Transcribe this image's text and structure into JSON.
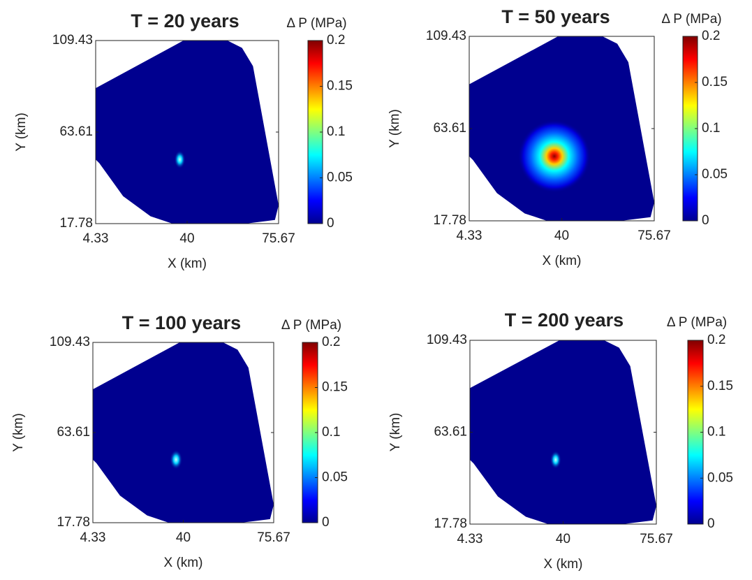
{
  "chart_data": [
    {
      "type": "heatmap",
      "title": "T = 20 years",
      "colorbar_label": "Δ P (MPa)",
      "xlabel": "X (km)",
      "ylabel": "Y (km)",
      "xlim": [
        4.33,
        75.67
      ],
      "xticks": [
        4.33,
        40,
        75.67
      ],
      "ylim": [
        17.78,
        109.43
      ],
      "yticks": [
        17.78,
        63.61,
        109.43
      ],
      "clim": [
        0,
        0.2
      ],
      "cticks": [
        0,
        0.05,
        0.1,
        0.15,
        0.2
      ],
      "colormap": "jet"
    },
    {
      "type": "heatmap",
      "title": "T = 50 years",
      "colorbar_label": "Δ P (MPa)",
      "xlabel": "X (km)",
      "ylabel": "Y (km)",
      "xlim": [
        4.33,
        75.67
      ],
      "xticks": [
        4.33,
        40,
        75.67
      ],
      "ylim": [
        17.78,
        109.43
      ],
      "yticks": [
        17.78,
        63.61,
        109.43
      ],
      "clim": [
        0,
        0.2
      ],
      "cticks": [
        0,
        0.05,
        0.1,
        0.15,
        0.2
      ],
      "colormap": "jet"
    },
    {
      "type": "heatmap",
      "title": "T = 100 years",
      "colorbar_label": "Δ P (MPa)",
      "xlabel": "X (km)",
      "ylabel": "Y (km)",
      "xlim": [
        4.33,
        75.67
      ],
      "xticks": [
        4.33,
        40,
        75.67
      ],
      "ylim": [
        17.78,
        109.43
      ],
      "yticks": [
        17.78,
        63.61,
        109.43
      ],
      "clim": [
        0,
        0.2
      ],
      "cticks": [
        0,
        0.05,
        0.1,
        0.15,
        0.2
      ],
      "colormap": "jet"
    },
    {
      "type": "heatmap",
      "title": "T = 200 years",
      "colorbar_label": "Δ P (MPa)",
      "xlabel": "X (km)",
      "ylabel": "Y (km)",
      "xlim": [
        4.33,
        75.67
      ],
      "xticks": [
        4.33,
        40,
        75.67
      ],
      "ylim": [
        17.78,
        109.43
      ],
      "yticks": [
        17.78,
        63.61,
        109.43
      ],
      "clim": [
        0,
        0.2
      ],
      "cticks": [
        0,
        0.05,
        0.1,
        0.15,
        0.2
      ],
      "colormap": "jet"
    }
  ]
}
